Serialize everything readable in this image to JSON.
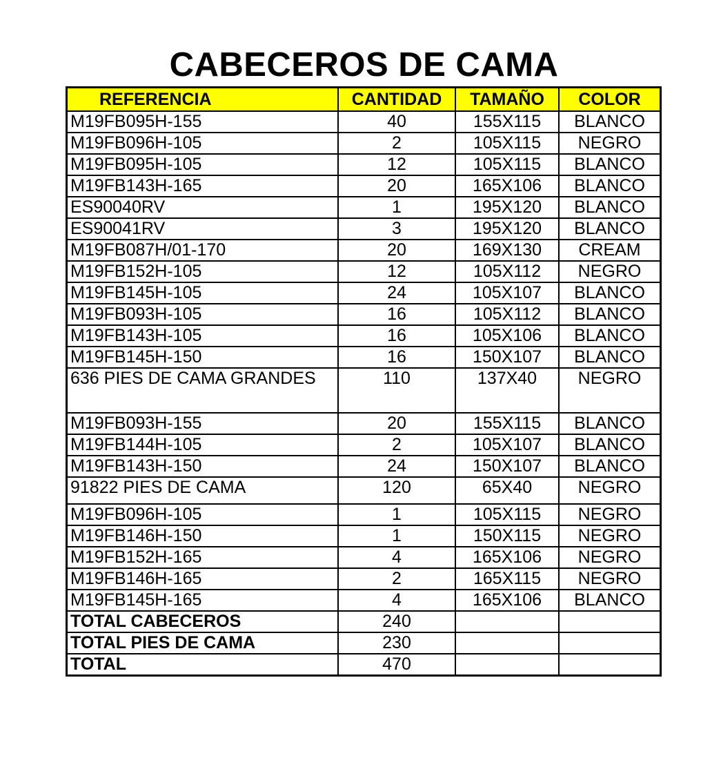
{
  "title": "CABECEROS DE CAMA",
  "columns": [
    "REFERENCIA",
    "CANTIDAD",
    "TAMAÑO",
    "COLOR"
  ],
  "header_color": "#ffff00",
  "rows": [
    [
      "M19FB095H-155",
      "40",
      "155X115",
      "BLANCO"
    ],
    [
      "M19FB096H-105",
      "2",
      "105X115",
      "NEGRO"
    ],
    [
      "M19FB095H-105",
      "12",
      "105X115",
      "BLANCO"
    ],
    [
      "M19FB143H-165",
      "20",
      "165X106",
      "BLANCO"
    ],
    [
      "ES90040RV",
      "1",
      "195X120",
      "BLANCO"
    ],
    [
      "ES90041RV",
      "3",
      "195X120",
      "BLANCO"
    ],
    [
      "M19FB087H/01-170",
      "20",
      "169X130",
      "CREAM"
    ],
    [
      "M19FB152H-105",
      "12",
      "105X112",
      "NEGRO"
    ],
    [
      "M19FB145H-105",
      "24",
      "105X107",
      "BLANCO"
    ],
    [
      "M19FB093H-105",
      "16",
      "105X112",
      "BLANCO"
    ],
    [
      "M19FB143H-105",
      "16",
      "105X106",
      "BLANCO"
    ],
    [
      "M19FB145H-150",
      "16",
      "150X107",
      "BLANCO"
    ],
    [
      "636 PIES DE CAMA GRANDES",
      "110",
      "137X40",
      "NEGRO"
    ],
    [
      "M19FB093H-155",
      "20",
      "155X115",
      "BLANCO"
    ],
    [
      "M19FB144H-105",
      "2",
      "105X107",
      "BLANCO"
    ],
    [
      "M19FB143H-150",
      "24",
      "150X107",
      "BLANCO"
    ],
    [
      "91822 PIES DE CAMA",
      "120",
      "65X40",
      "NEGRO"
    ],
    [
      "M19FB096H-105",
      "1",
      "105X115",
      "NEGRO"
    ],
    [
      "M19FB146H-150",
      "1",
      "150X115",
      "NEGRO"
    ],
    [
      "M19FB152H-165",
      "4",
      "165X106",
      "NEGRO"
    ],
    [
      "M19FB146H-165",
      "2",
      "165X115",
      "NEGRO"
    ],
    [
      "M19FB145H-165",
      "4",
      "165X106",
      "BLANCO"
    ]
  ],
  "totals": [
    [
      "TOTAL CABECEROS",
      "240"
    ],
    [
      "TOTAL PIES DE CAMA",
      "230"
    ],
    [
      "TOTAL",
      "470"
    ]
  ]
}
